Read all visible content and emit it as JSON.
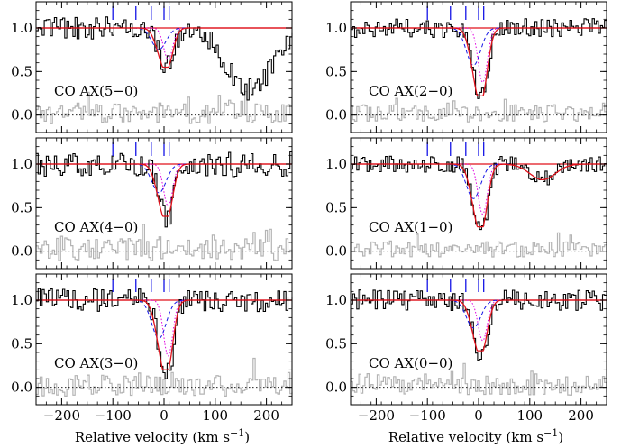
{
  "colors": {
    "data": "#000000",
    "residual": "#b4b4b4",
    "model": "#e0101a",
    "component_dashed": "#1414e6",
    "component_dotted": "#e000e0",
    "component_marks": "#1414e6",
    "continuum": "#e0101a",
    "zero_line": "#000000"
  },
  "chart_data": {
    "type": "line",
    "layout": "3 rows x 2 columns, shared x axis per column",
    "xlabel": "Relative velocity (km s",
    "xlabel_sup": "−1",
    "xlabel_close": ")",
    "xlim": [
      -250,
      250
    ],
    "ylim": [
      -0.2,
      1.3
    ],
    "xticks": [
      -200,
      -100,
      0,
      100,
      200
    ],
    "xtick_labels": [
      "−200",
      "−100",
      "0",
      "100",
      "200"
    ],
    "yticks": [
      0.0,
      0.5,
      1.0
    ],
    "ytick_labels": [
      "0.0",
      "0.5",
      "1.0"
    ],
    "component_velocities": [
      -100,
      -55,
      -25,
      0,
      10
    ],
    "panels": [
      {
        "label": "CO AX(5−0)",
        "trough": 0.55,
        "secondary": {
          "center": 165,
          "depth": 0.7,
          "width": 45
        },
        "noise": 0.11,
        "seed": 3
      },
      {
        "label": "CO AX(2−0)",
        "trough": 0.22,
        "secondary": null,
        "noise": 0.09,
        "seed": 11
      },
      {
        "label": "CO AX(4−0)",
        "trough": 0.4,
        "secondary": null,
        "noise": 0.12,
        "seed": 17
      },
      {
        "label": "CO AX(1−0)",
        "trough": 0.28,
        "secondary": {
          "center": 125,
          "depth": 0.18,
          "width": 25
        },
        "noise": 0.08,
        "seed": 23
      },
      {
        "label": "CO AX(3−0)",
        "trough": 0.2,
        "secondary": null,
        "noise": 0.11,
        "seed": 29
      },
      {
        "label": "CO AX(0−0)",
        "trough": 0.42,
        "secondary": null,
        "noise": 0.1,
        "seed": 37
      }
    ]
  }
}
